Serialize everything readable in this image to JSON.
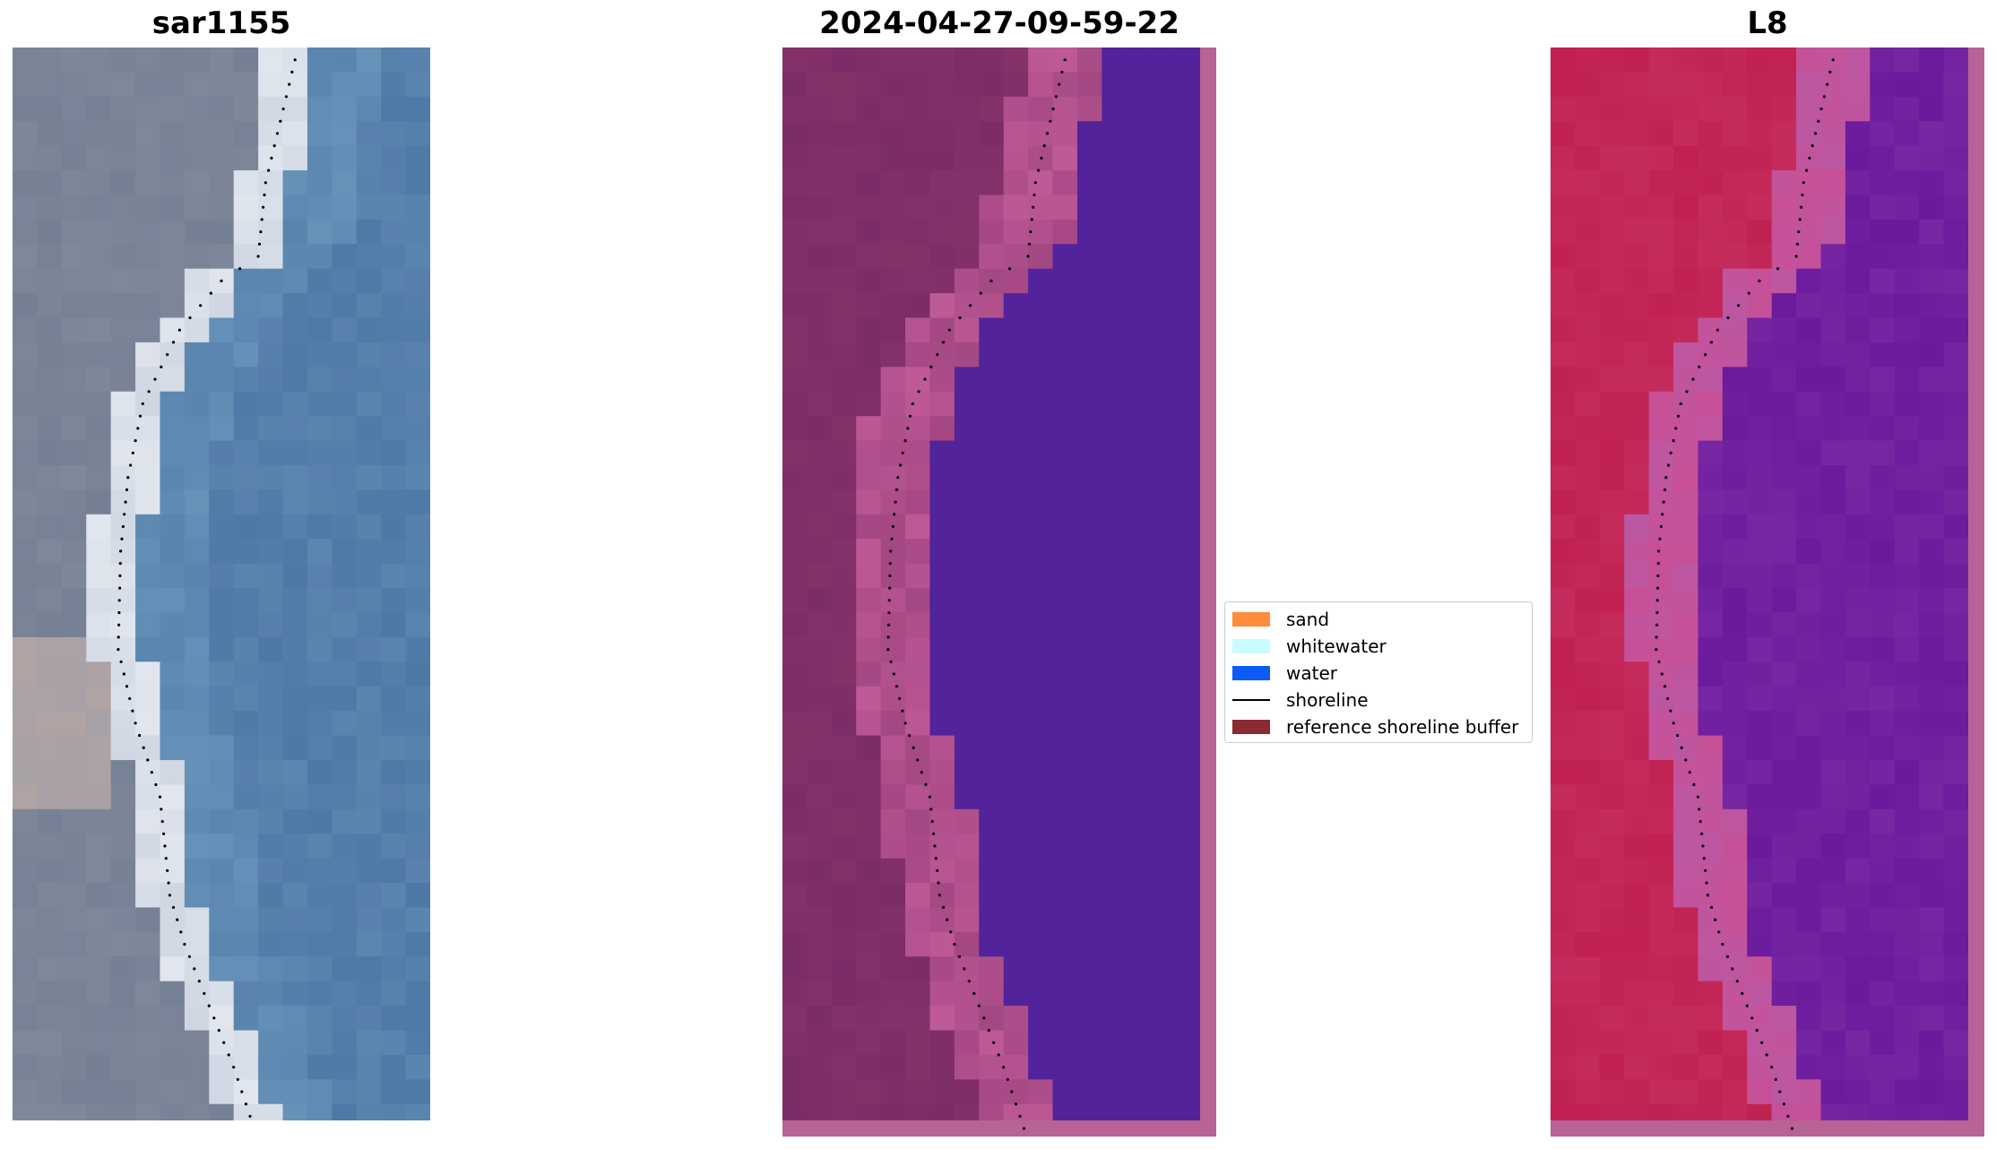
{
  "panels": [
    {
      "title": "sar1155",
      "style": "rgb"
    },
    {
      "title": "2024-04-27-09-59-22",
      "style": "classified"
    },
    {
      "title": "L8",
      "style": "falsecolor"
    }
  ],
  "legend": {
    "items": [
      {
        "label": "sand",
        "color": "#ff8c3a",
        "kind": "patch"
      },
      {
        "label": "whitewater",
        "color": "#c8fcff",
        "kind": "patch"
      },
      {
        "label": "water",
        "color": "#0a5cf5",
        "kind": "patch"
      },
      {
        "label": "shoreline",
        "color": "#000000",
        "kind": "line"
      },
      {
        "label": "reference shoreline buffer",
        "color": "#8b2a30",
        "kind": "patch"
      }
    ]
  },
  "colors": {
    "classified_land": "#7c2c66",
    "classified_water": "#52239a",
    "buffer_edge": "#b96296",
    "falsecolor_land": "#c02150",
    "falsecolor_water": "#6b1a9c"
  }
}
